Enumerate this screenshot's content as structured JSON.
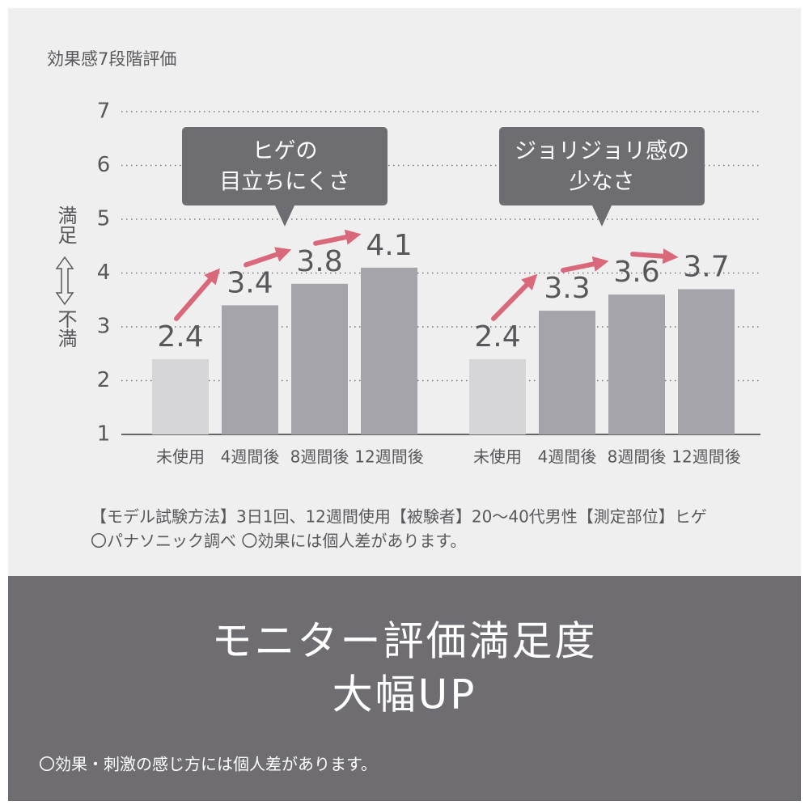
{
  "chart_title": "効果感7段階評価",
  "axis_label_top": "満足",
  "axis_label_bottom": "不満",
  "chart_data": [
    {
      "type": "bar",
      "callout": [
        "ヒゲの",
        "目立ちにくさ"
      ],
      "categories": [
        "未使用",
        "4週間後",
        "8週間後",
        "12週間後"
      ],
      "values": [
        2.4,
        3.4,
        3.8,
        4.1
      ],
      "colors": [
        "#d6d5d8",
        "#a5a4ab",
        "#a5a4ab",
        "#a5a4ab"
      ],
      "ylim": [
        1,
        7
      ],
      "yticks": [
        1,
        2,
        3,
        4,
        5,
        6,
        7
      ],
      "grid": true
    },
    {
      "type": "bar",
      "callout": [
        "ジョリジョリ感の",
        "少なさ"
      ],
      "categories": [
        "未使用",
        "4週間後",
        "8週間後",
        "12週間後"
      ],
      "values": [
        2.4,
        3.3,
        3.6,
        3.7
      ],
      "colors": [
        "#d6d5d8",
        "#a5a4ab",
        "#a5a4ab",
        "#a5a4ab"
      ],
      "ylim": [
        1,
        7
      ]
    }
  ],
  "notes": [
    "【モデル試験方法】3日1回、12週間使用【被験者】20～40代男性【測定部位】ヒゲ",
    "〇パナソニック調べ 〇効果には個人差があります。"
  ],
  "banner": {
    "headline": [
      "モニター評価満足度",
      "大幅UP"
    ],
    "footnote": "〇効果・刺激の感じ方には個人差があります。"
  }
}
